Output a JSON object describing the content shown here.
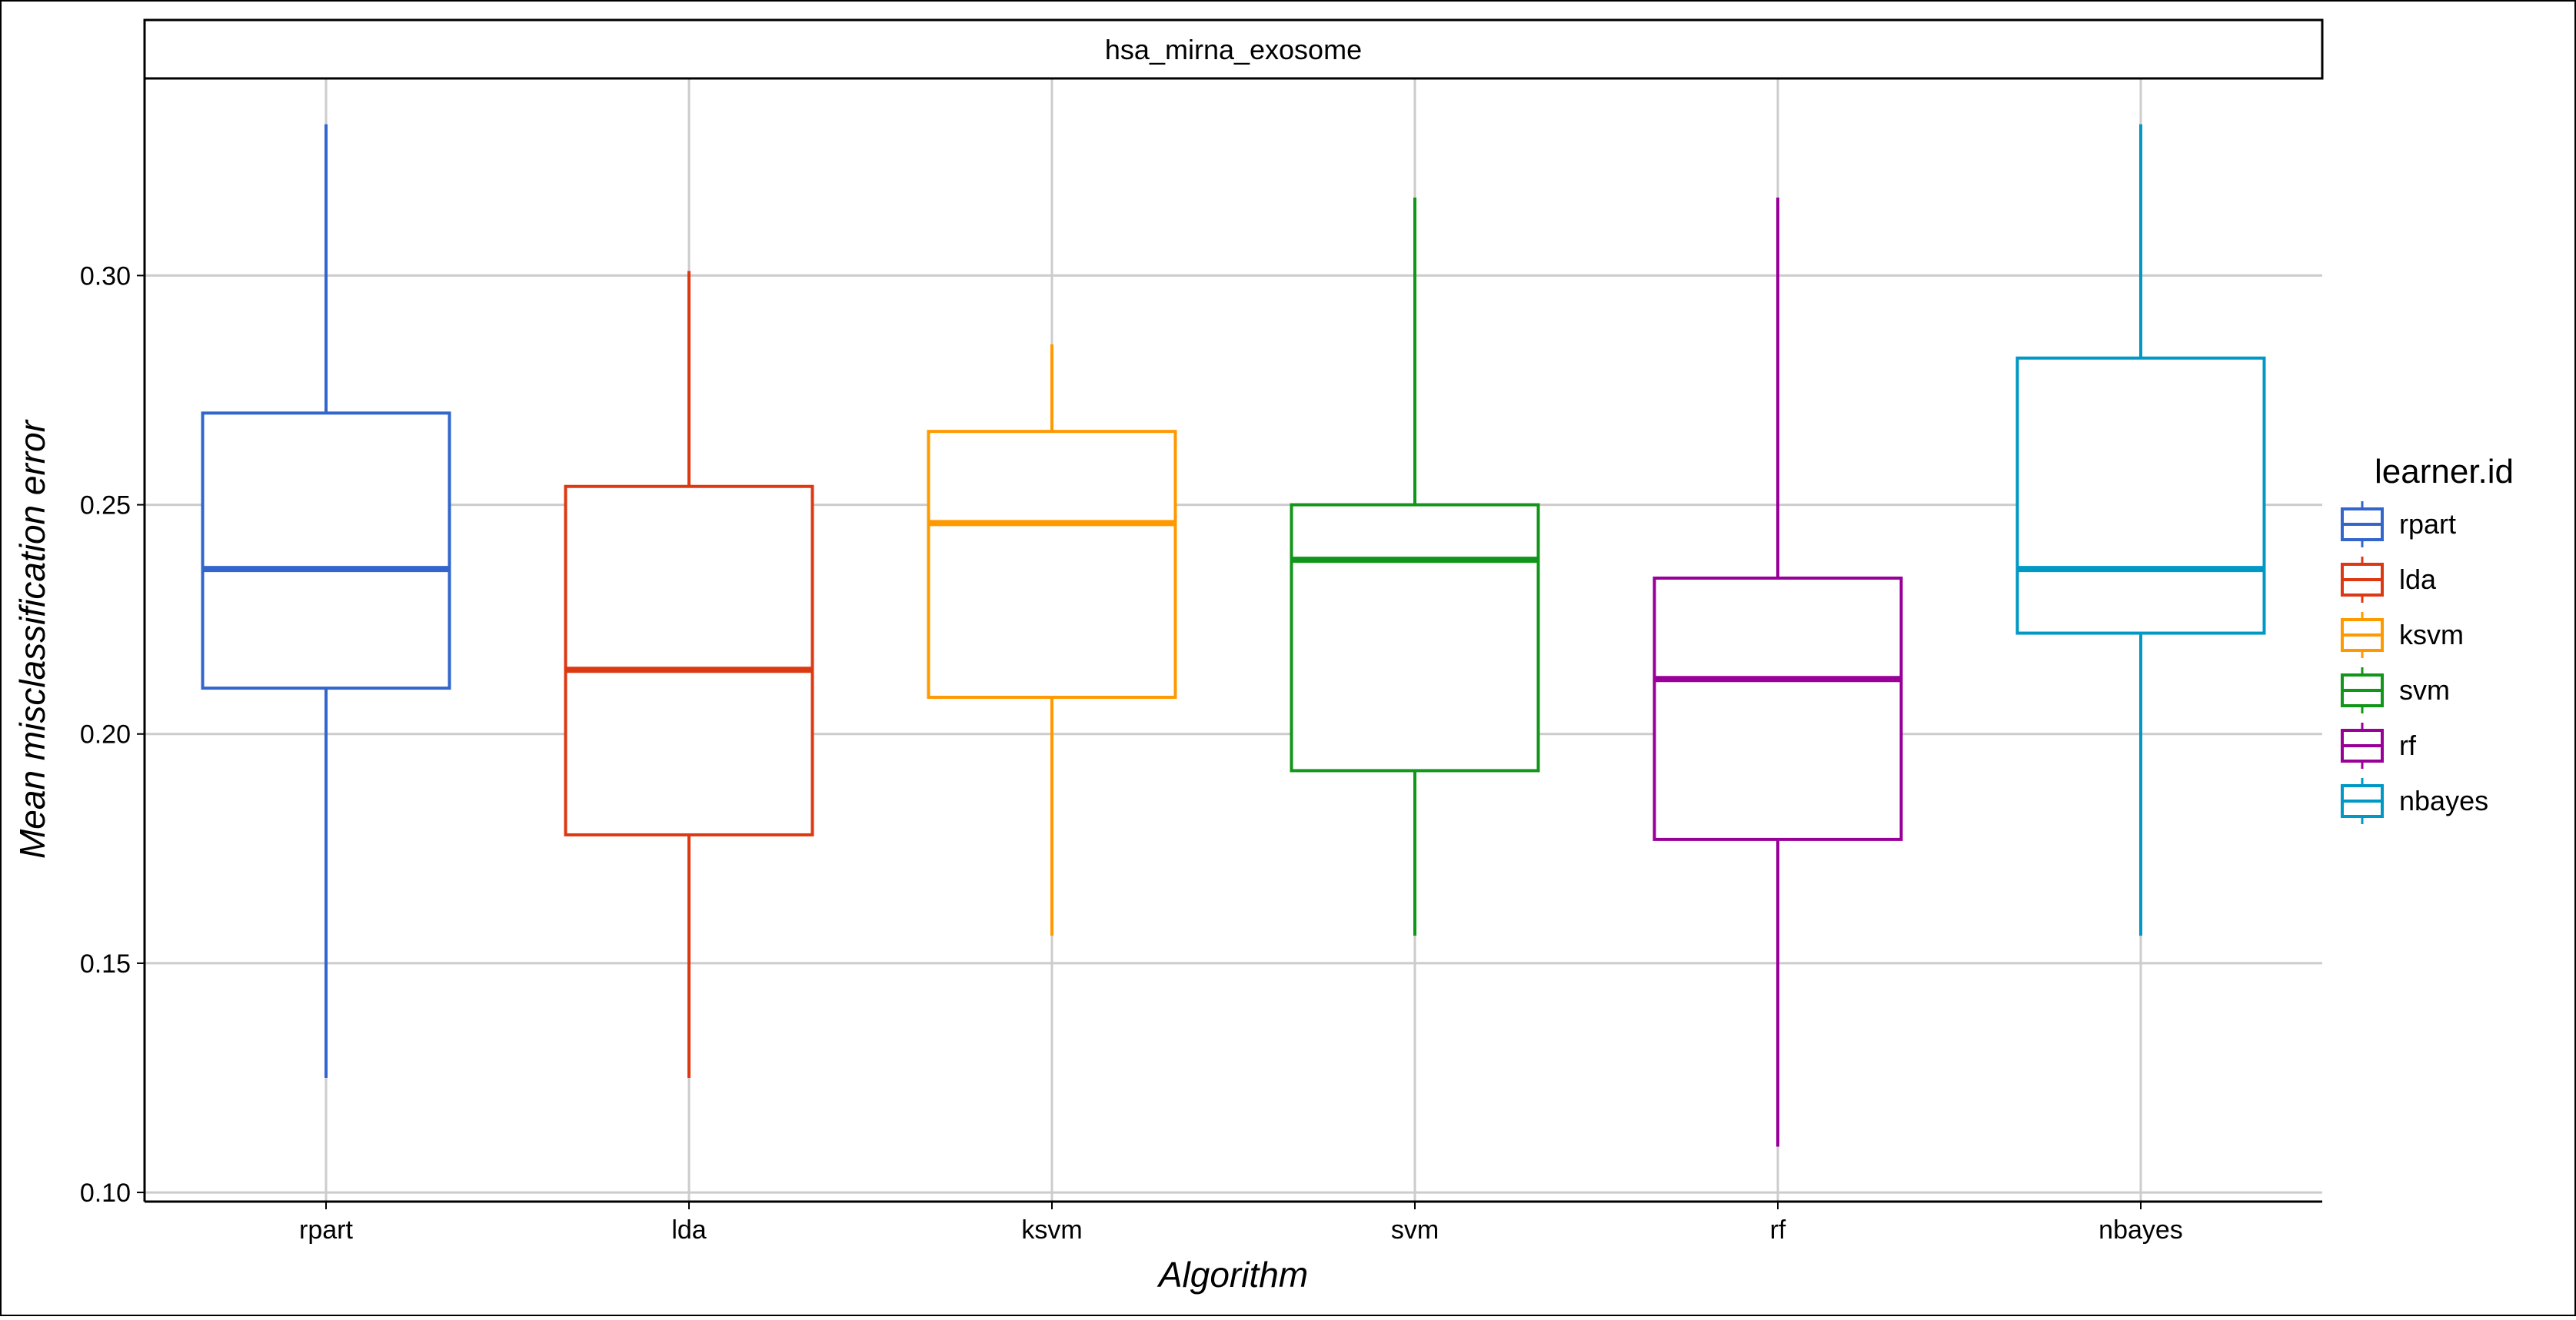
{
  "chart_data": {
    "type": "box",
    "facet_label": "hsa_mirna_exosome",
    "xlabel": "Algorithm",
    "ylabel": "Mean misclassification error",
    "categories": [
      "rpart",
      "lda",
      "ksvm",
      "svm",
      "rf",
      "nbayes"
    ],
    "ylim": [
      0.098,
      0.343
    ],
    "y_ticks": [
      0.1,
      0.15,
      0.2,
      0.25,
      0.3
    ],
    "y_tick_labels": [
      "0.10",
      "0.15",
      "0.20",
      "0.25",
      "0.30"
    ],
    "grid": true,
    "legend": {
      "title": "learner.id",
      "position": "right"
    },
    "boxes": [
      {
        "name": "rpart",
        "color": "#3366cc",
        "min": 0.125,
        "q1": 0.21,
        "median": 0.236,
        "q3": 0.27,
        "max": 0.333
      },
      {
        "name": "lda",
        "color": "#dc3912",
        "min": 0.125,
        "q1": 0.178,
        "median": 0.214,
        "q3": 0.254,
        "max": 0.301
      },
      {
        "name": "ksvm",
        "color": "#ff9900",
        "min": 0.156,
        "q1": 0.208,
        "median": 0.246,
        "q3": 0.266,
        "max": 0.285
      },
      {
        "name": "svm",
        "color": "#109618",
        "min": 0.156,
        "q1": 0.192,
        "median": 0.238,
        "q3": 0.25,
        "max": 0.317
      },
      {
        "name": "rf",
        "color": "#990099",
        "min": 0.11,
        "q1": 0.177,
        "median": 0.212,
        "q3": 0.234,
        "max": 0.317
      },
      {
        "name": "nbayes",
        "color": "#0099c6",
        "min": 0.156,
        "q1": 0.222,
        "median": 0.236,
        "q3": 0.282,
        "max": 0.333
      }
    ]
  }
}
